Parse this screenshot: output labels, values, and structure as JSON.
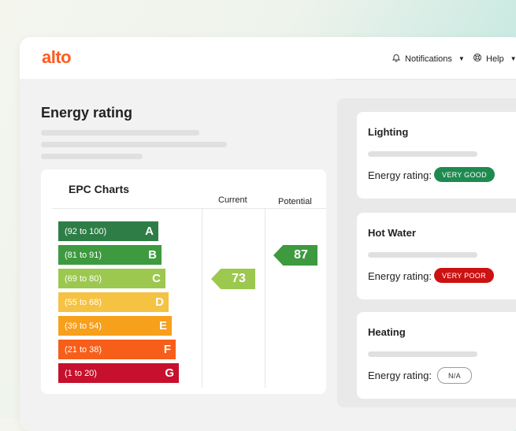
{
  "app": {
    "logo": "alto"
  },
  "header": {
    "notifications_label": "Notifications",
    "help_label": "Help"
  },
  "page": {
    "title": "Energy rating"
  },
  "epc": {
    "title": "EPC Charts",
    "current_label": "Current",
    "potential_label": "Potential",
    "bands": [
      {
        "range": "(92 to 100)",
        "letter": "A",
        "color": "#2e7d46"
      },
      {
        "range": "(81 to 91)",
        "letter": "B",
        "color": "#3d9a3f"
      },
      {
        "range": "(69 to 80)",
        "letter": "C",
        "color": "#9cc84f"
      },
      {
        "range": "(55 to 68)",
        "letter": "D",
        "color": "#f5c242"
      },
      {
        "range": "(39 to 54)",
        "letter": "E",
        "color": "#f7a01c"
      },
      {
        "range": "(21 to 38)",
        "letter": "F",
        "color": "#f75e1a"
      },
      {
        "range": "(1 to 20)",
        "letter": "G",
        "color": "#c6102d"
      }
    ],
    "current_value": "73",
    "current_color": "#9cc84f",
    "potential_value": "87",
    "potential_color": "#3d9a3f"
  },
  "ratings": [
    {
      "title": "Lighting",
      "label": "Energy rating:",
      "badge": "VERY GOOD",
      "badge_color": "#1e8a4f"
    },
    {
      "title": "Hot Water",
      "label": "Energy rating:",
      "badge": "VERY POOR",
      "badge_color": "#cc1111"
    },
    {
      "title": "Heating",
      "label": "Energy rating:",
      "badge": "N/A",
      "badge_color": "#ffffff"
    }
  ],
  "icons": {
    "notifications": "bell-icon",
    "help": "lifebuoy-icon",
    "caret": "chevron-down-icon"
  }
}
